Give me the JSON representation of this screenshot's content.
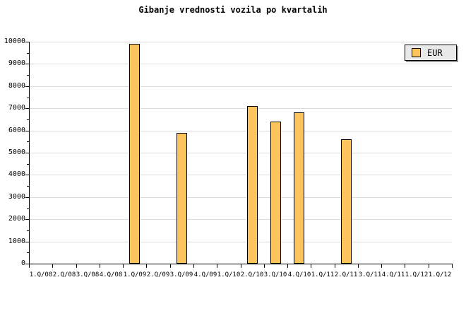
{
  "chart_data": {
    "type": "bar",
    "title": "Gibanje vrednosti vozila po kvartalih",
    "categories": [
      "1.Q/08",
      "2.Q/08",
      "3.Q/08",
      "4.Q/08",
      "1.Q/09",
      "2.Q/09",
      "3.Q/09",
      "4.Q/09",
      "1.Q/10",
      "2.Q/10",
      "3.Q/10",
      "4.Q/10",
      "1.Q/11",
      "2.Q/11",
      "3.Q/11",
      "4.Q/11",
      "1.Q/12",
      "1.Q/12"
    ],
    "series": [
      {
        "name": "EUR",
        "color": "#FCC45C",
        "values": [
          null,
          null,
          null,
          null,
          9900,
          null,
          5900,
          null,
          null,
          7100,
          6400,
          6800,
          null,
          5600,
          null,
          null,
          null,
          null
        ]
      }
    ],
    "xlabel": "",
    "ylabel": "",
    "ylim": [
      0,
      10000
    ],
    "ytick_major": 1000,
    "ytick_minor": 500,
    "grid": "horizontal-major",
    "legend_position": "top-right",
    "colors": {
      "background": "#FFFFFF",
      "grid": "#DCDCDC",
      "axis": "#000000",
      "legend_bg": "#E9E9E9",
      "legend_shadow": "#999999",
      "text": "#000000"
    }
  }
}
